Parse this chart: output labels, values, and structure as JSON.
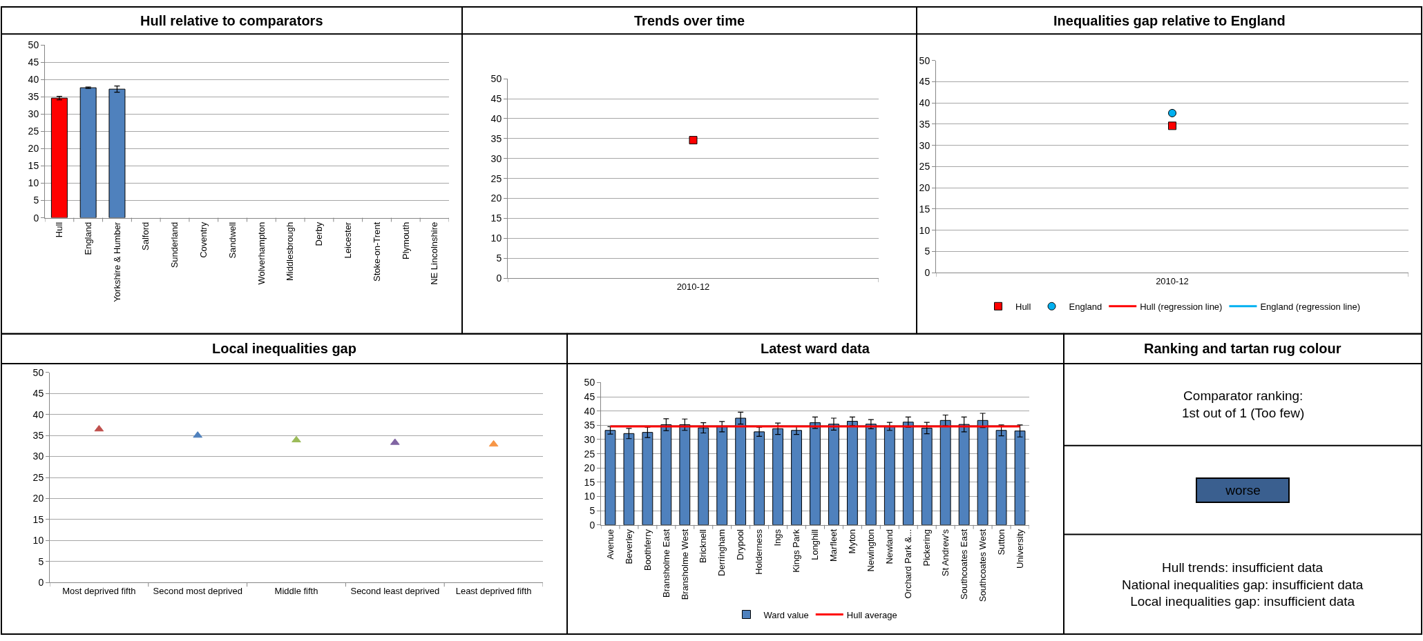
{
  "chart_data": [
    {
      "type": "bar",
      "title": "Hull relative to comparators",
      "categories": [
        "Hull",
        "England",
        "Yorkshire & Humber",
        "Salford",
        "Sunderland",
        "Coventry",
        "Sandwell",
        "Wolverhampton",
        "Middlesbrough",
        "Derby",
        "Leicester",
        "Stoke-on-Trent",
        "Plymouth",
        "NE Lincolnshire"
      ],
      "values": [
        34.6,
        37.6,
        37.2,
        null,
        null,
        null,
        null,
        null,
        null,
        null,
        null,
        null,
        null,
        null
      ],
      "errors": [
        0.5,
        0.2,
        0.9,
        null,
        null,
        null,
        null,
        null,
        null,
        null,
        null,
        null,
        null,
        null
      ],
      "colors": [
        "#ff0000",
        "#4f81bd",
        "#4f81bd",
        "#4f81bd",
        "#4f81bd",
        "#4f81bd",
        "#4f81bd",
        "#4f81bd",
        "#4f81bd",
        "#4f81bd",
        "#4f81bd",
        "#4f81bd",
        "#4f81bd",
        "#4f81bd"
      ],
      "ylim": [
        0,
        50
      ],
      "yticks": [
        0,
        5,
        10,
        15,
        20,
        25,
        30,
        35,
        40,
        45,
        50
      ],
      "grid": "y"
    },
    {
      "type": "scatter",
      "title": "Trends over time",
      "categories": [
        "2010-12"
      ],
      "values": [
        34.6
      ],
      "color": "#ff0000",
      "marker": "square",
      "ylim": [
        0,
        50
      ],
      "yticks": [
        0,
        5,
        10,
        15,
        20,
        25,
        30,
        35,
        40,
        45,
        50
      ],
      "grid": "y"
    },
    {
      "type": "scatter",
      "title": "Inequalities gap relative to England",
      "categories": [
        "2010-12"
      ],
      "series": [
        {
          "name": "Hull",
          "color": "#ff0000",
          "values": [
            34.6
          ],
          "marker": "square"
        },
        {
          "name": "England",
          "color": "#00b0f0",
          "values": [
            37.6
          ],
          "marker": "circle"
        },
        {
          "name": "Hull (regression line)",
          "color": "#ff0000",
          "values": [
            null
          ],
          "type": "line"
        },
        {
          "name": "England (regression line)",
          "color": "#00b0f0",
          "values": [
            null
          ],
          "type": "line"
        }
      ],
      "ylim": [
        0,
        50
      ],
      "yticks": [
        0,
        5,
        10,
        15,
        20,
        25,
        30,
        35,
        40,
        45,
        50
      ],
      "grid": "y",
      "legend": "bottom"
    },
    {
      "type": "scatter",
      "title": "Local inequalities gap",
      "categories": [
        "Most deprived fifth",
        "Second most deprived",
        "Middle fifth",
        "Second least deprived",
        "Least deprived fifth"
      ],
      "values": [
        36.5,
        35.0,
        33.9,
        33.3,
        32.9
      ],
      "colors": [
        "#c0504d",
        "#4f81bd",
        "#9bbb59",
        "#8064a2",
        "#f79646"
      ],
      "marker": "triangle",
      "ylim": [
        0,
        50
      ],
      "yticks": [
        0,
        5,
        10,
        15,
        20,
        25,
        30,
        35,
        40,
        45,
        50
      ],
      "grid": "y"
    },
    {
      "type": "bar",
      "title": "Latest ward data",
      "categories": [
        "Avenue",
        "Beverley",
        "Boothferry",
        "Bransholme East",
        "Bransholme West",
        "Bricknell",
        "Derringham",
        "Drypool",
        "Holderness",
        "Ings",
        "Kings Park",
        "Longhill",
        "Marfleet",
        "Myton",
        "Newington",
        "Newland",
        "Orchard Park &...",
        "Pickering",
        "St Andrew's",
        "Southcoates East",
        "Southcoates West",
        "Sutton",
        "University"
      ],
      "series": [
        {
          "name": "Ward value",
          "color": "#4f81bd",
          "values": [
            33.2,
            32.1,
            32.5,
            35.2,
            35.2,
            34.1,
            34.5,
            37.5,
            32.7,
            33.8,
            33.2,
            35.9,
            35.4,
            36.4,
            35.4,
            34.6,
            36.1,
            34.0,
            36.7,
            35.3,
            36.7,
            33.2,
            33.0
          ],
          "errors": [
            1.3,
            1.8,
            1.8,
            2.1,
            2.0,
            1.8,
            1.8,
            2.1,
            1.6,
            2.0,
            1.4,
            2.0,
            2.1,
            1.5,
            1.6,
            1.4,
            1.8,
            2.0,
            1.9,
            2.6,
            2.5,
            1.9,
            2.1
          ]
        },
        {
          "name": "Hull average",
          "color": "#ff0000",
          "type": "line",
          "values": [
            34.6,
            34.6,
            34.6,
            34.6,
            34.6,
            34.6,
            34.6,
            34.6,
            34.6,
            34.6,
            34.6,
            34.6,
            34.6,
            34.6,
            34.6,
            34.6,
            34.6,
            34.6,
            34.6,
            34.6,
            34.6,
            34.6,
            34.6
          ]
        }
      ],
      "ylim": [
        0,
        50
      ],
      "yticks": [
        0,
        5,
        10,
        15,
        20,
        25,
        30,
        35,
        40,
        45,
        50
      ],
      "grid": "y",
      "legend": "bottom"
    },
    {
      "type": "other",
      "title": "Ranking and tartan rug colour",
      "annotations": [
        "Comparator ranking:\n1st out of 1 (Too few)",
        "worse",
        "Hull trends: insufficient data\nNational inequalities gap: insufficient data\nLocal inequalities gap: insufficient data"
      ]
    }
  ]
}
